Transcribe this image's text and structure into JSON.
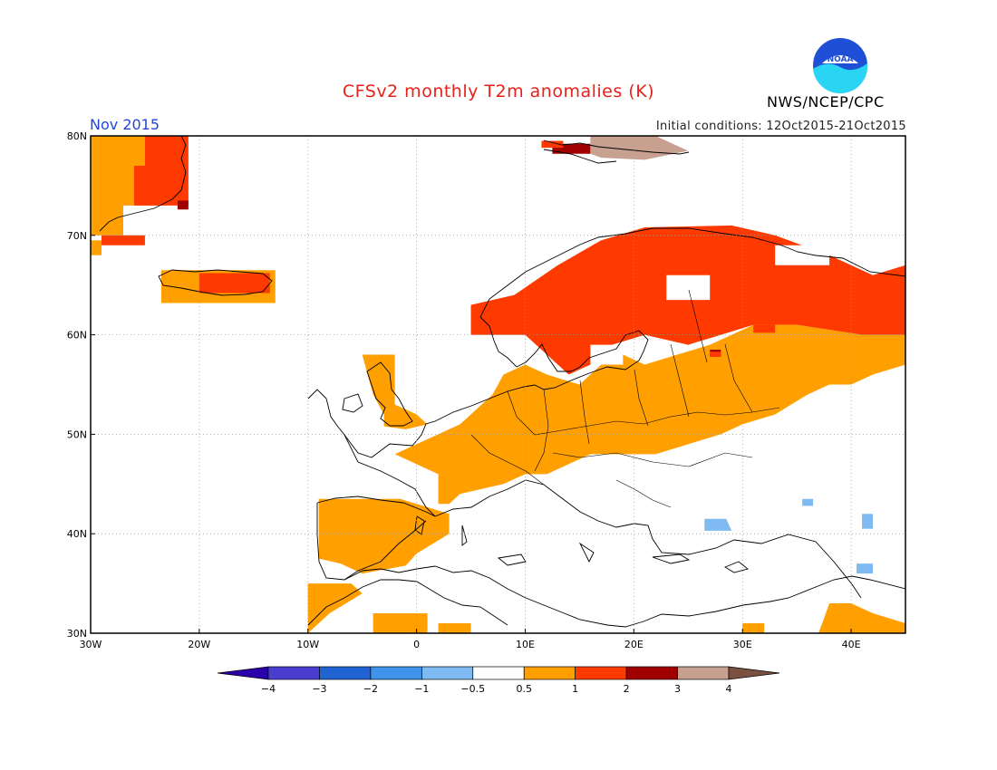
{
  "header": {
    "title": "CFSv2 monthly T2m anomalies (K)",
    "month": "Nov 2015",
    "initial_conditions": "Initial conditions: 12Oct2015-21Oct2015",
    "agency": "NWS/NCEP/CPC",
    "logo_text": "NOAA"
  },
  "map": {
    "lon_range": [
      -30,
      45
    ],
    "lat_range": [
      30,
      80
    ],
    "lon_ticks": [
      {
        "value": -30,
        "label": "30W"
      },
      {
        "value": -20,
        "label": "20W"
      },
      {
        "value": -10,
        "label": "10W"
      },
      {
        "value": 0,
        "label": "0"
      },
      {
        "value": 10,
        "label": "10E"
      },
      {
        "value": 20,
        "label": "20E"
      },
      {
        "value": 30,
        "label": "30E"
      },
      {
        "value": 40,
        "label": "40E"
      }
    ],
    "lat_ticks": [
      {
        "value": 80,
        "label": "80N"
      },
      {
        "value": 70,
        "label": "70N"
      },
      {
        "value": 60,
        "label": "60N"
      },
      {
        "value": 50,
        "label": "50N"
      },
      {
        "value": 40,
        "label": "40N"
      },
      {
        "value": 30,
        "label": "30N"
      }
    ],
    "grid": "dotted",
    "anomaly_regions": [
      {
        "level": 1,
        "color": "#ff9f00",
        "polygon": [
          [
            -30,
            80
          ],
          [
            -25,
            80
          ],
          [
            -25,
            77
          ],
          [
            -23,
            77
          ],
          [
            -23,
            73
          ],
          [
            -27,
            73
          ],
          [
            -27,
            70
          ],
          [
            -30,
            70
          ]
        ]
      },
      {
        "level": 2,
        "color": "#ff3a00",
        "polygon": [
          [
            -25,
            80
          ],
          [
            -21,
            80
          ],
          [
            -21,
            73
          ],
          [
            -26,
            73
          ],
          [
            -26,
            77
          ],
          [
            -25,
            77
          ]
        ]
      },
      {
        "level": 2,
        "color": "#ff3a00",
        "polygon": [
          [
            -29,
            70
          ],
          [
            -25,
            70
          ],
          [
            -25,
            69
          ],
          [
            -29,
            69
          ]
        ]
      },
      {
        "level": 1,
        "color": "#ff9f00",
        "polygon": [
          [
            -30,
            69.5
          ],
          [
            -29,
            69.5
          ],
          [
            -29,
            68
          ],
          [
            -30,
            68
          ]
        ]
      },
      {
        "level": 1,
        "color": "#ff9f00",
        "polygon": [
          [
            -23.5,
            66.5
          ],
          [
            -13,
            66.5
          ],
          [
            -13,
            63.2
          ],
          [
            -23.5,
            63.2
          ]
        ]
      },
      {
        "level": 2,
        "color": "#ff3a00",
        "polygon": [
          [
            -20,
            66.2
          ],
          [
            -13.5,
            66.2
          ],
          [
            -13.5,
            64.2
          ],
          [
            -20,
            64.2
          ]
        ]
      },
      {
        "level": 2,
        "color": "#ff3a00",
        "polygon": [
          [
            5,
            63
          ],
          [
            9,
            64
          ],
          [
            13,
            67
          ],
          [
            17,
            69.5
          ],
          [
            21,
            70.8
          ],
          [
            29,
            71
          ],
          [
            33,
            70
          ],
          [
            38,
            68
          ],
          [
            42,
            66
          ],
          [
            45,
            67
          ],
          [
            45,
            60
          ],
          [
            41,
            60
          ],
          [
            35,
            61
          ],
          [
            31,
            61
          ],
          [
            28,
            60
          ],
          [
            25,
            59
          ],
          [
            21,
            60
          ],
          [
            18,
            59
          ],
          [
            16,
            57
          ],
          [
            14,
            56
          ],
          [
            12,
            58
          ],
          [
            10,
            60
          ],
          [
            7,
            60
          ],
          [
            5,
            60
          ]
        ]
      },
      {
        "level": 1,
        "color": "#ff9f00",
        "polygon": [
          [
            45,
            60
          ],
          [
            45,
            57
          ],
          [
            42,
            56
          ],
          [
            40,
            55
          ],
          [
            38,
            55
          ],
          [
            36,
            54
          ],
          [
            33,
            52
          ],
          [
            30,
            51
          ],
          [
            28,
            50
          ],
          [
            25,
            49
          ],
          [
            22,
            48
          ],
          [
            19,
            48
          ],
          [
            16,
            48
          ],
          [
            14,
            47
          ],
          [
            12,
            46
          ],
          [
            10,
            46
          ],
          [
            8,
            45
          ],
          [
            6,
            44.5
          ],
          [
            4,
            44
          ],
          [
            3,
            43
          ],
          [
            2,
            43
          ],
          [
            2,
            46
          ],
          [
            0,
            47
          ],
          [
            -2,
            48
          ],
          [
            0,
            49
          ],
          [
            2,
            50
          ],
          [
            4,
            51
          ],
          [
            6,
            53
          ],
          [
            7,
            54
          ],
          [
            8,
            56
          ],
          [
            10,
            57
          ],
          [
            12,
            56
          ],
          [
            15,
            55
          ],
          [
            17,
            57
          ],
          [
            19,
            58
          ],
          [
            21,
            57
          ],
          [
            24,
            58
          ],
          [
            27,
            59
          ],
          [
            31,
            61
          ],
          [
            35,
            61
          ],
          [
            41,
            60
          ]
        ]
      },
      {
        "level": 1,
        "color": "#ff9f00",
        "polygon": [
          [
            -9,
            43.5
          ],
          [
            -1.5,
            43.5
          ],
          [
            3,
            42
          ],
          [
            3,
            40
          ],
          [
            0,
            38
          ],
          [
            -1,
            36.8
          ],
          [
            -5,
            36
          ],
          [
            -7,
            37
          ],
          [
            -9,
            37.5
          ]
        ]
      },
      {
        "level": 1,
        "color": "#ff9f00",
        "polygon": [
          [
            -5,
            58
          ],
          [
            -2,
            58
          ],
          [
            -2,
            53
          ],
          [
            0,
            52
          ],
          [
            1,
            51
          ],
          [
            -1,
            50.5
          ],
          [
            -3,
            50.8
          ],
          [
            -3,
            52
          ],
          [
            -4,
            54
          ]
        ]
      },
      {
        "level": 1,
        "color": "#ff9f00",
        "polygon": [
          [
            -10,
            35
          ],
          [
            -6,
            35
          ],
          [
            -5,
            34
          ],
          [
            -8,
            32
          ],
          [
            -10,
            30
          ],
          [
            -10,
            30
          ]
        ]
      },
      {
        "level": 1,
        "color": "#ff9f00",
        "polygon": [
          [
            -4,
            32
          ],
          [
            1,
            32
          ],
          [
            1,
            30
          ],
          [
            -4,
            30
          ]
        ]
      },
      {
        "level": 1,
        "color": "#ff9f00",
        "polygon": [
          [
            2,
            31
          ],
          [
            5,
            31
          ],
          [
            5,
            30
          ],
          [
            2,
            30
          ]
        ]
      },
      {
        "level": 1,
        "color": "#ff9f00",
        "polygon": [
          [
            38,
            33
          ],
          [
            40,
            33
          ],
          [
            42,
            32
          ],
          [
            45,
            31
          ],
          [
            45,
            30
          ],
          [
            37,
            30
          ]
        ]
      },
      {
        "level": 1,
        "color": "#ff9f00",
        "polygon": [
          [
            30,
            31
          ],
          [
            32,
            31
          ],
          [
            32,
            30
          ],
          [
            30,
            30
          ]
        ]
      },
      {
        "level": -1,
        "color": "#7fbbf2",
        "polygon": [
          [
            26.5,
            41.5
          ],
          [
            28.5,
            41.5
          ],
          [
            29,
            40.3
          ],
          [
            26.5,
            40.3
          ]
        ]
      },
      {
        "level": -1,
        "color": "#7fbbf2",
        "polygon": [
          [
            41,
            42
          ],
          [
            42,
            42
          ],
          [
            42,
            40.5
          ],
          [
            41,
            40.5
          ]
        ]
      },
      {
        "level": -1,
        "color": "#7fbbf2",
        "polygon": [
          [
            35.5,
            43.5
          ],
          [
            36.5,
            43.5
          ],
          [
            36.5,
            42.8
          ],
          [
            35.5,
            42.8
          ]
        ]
      },
      {
        "level": -1,
        "color": "#7fbbf2",
        "polygon": [
          [
            40.5,
            37
          ],
          [
            42,
            37
          ],
          [
            42,
            36
          ],
          [
            40.5,
            36
          ]
        ]
      },
      {
        "level": 3,
        "color": "#a00000",
        "polygon": [
          [
            27,
            58.5
          ],
          [
            28,
            58.5
          ],
          [
            28,
            57.8
          ],
          [
            27,
            57.8
          ]
        ]
      },
      {
        "level": 3,
        "color": "#a00000",
        "polygon": [
          [
            -22,
            73.5
          ],
          [
            -21,
            73.5
          ],
          [
            -21,
            72.6
          ],
          [
            -22,
            72.6
          ]
        ]
      },
      {
        "level": 3,
        "color": "#a00000",
        "polygon": [
          [
            12.5,
            79.2
          ],
          [
            16,
            79.2
          ],
          [
            16,
            78.2
          ],
          [
            12.5,
            78.2
          ]
        ]
      },
      {
        "level": 2,
        "color": "#ff3a00",
        "polygon": [
          [
            31,
            61
          ],
          [
            33,
            61
          ],
          [
            33,
            60.2
          ],
          [
            31,
            60.2
          ]
        ]
      },
      {
        "level": 2,
        "color": "#ff3a00",
        "polygon": [
          [
            27,
            58.3
          ],
          [
            28,
            58.3
          ],
          [
            28,
            57.8
          ],
          [
            27,
            57.8
          ]
        ]
      },
      {
        "level": 4,
        "color": "#c7a090",
        "polygon": [
          [
            16,
            80
          ],
          [
            22,
            80
          ],
          [
            25,
            78.5
          ],
          [
            21,
            77.6
          ],
          [
            17,
            77.8
          ],
          [
            16,
            78.2
          ]
        ]
      },
      {
        "level": 2,
        "color": "#ff3a00",
        "polygon": [
          [
            11.5,
            79.5
          ],
          [
            13.5,
            79.5
          ],
          [
            13.5,
            78.8
          ],
          [
            11.5,
            78.8
          ]
        ]
      }
    ],
    "white_holes": [
      [
        [
          23,
          66
        ],
        [
          27,
          66
        ],
        [
          27,
          63.5
        ],
        [
          23,
          63.5
        ]
      ],
      [
        [
          33,
          69
        ],
        [
          38,
          69
        ],
        [
          38,
          67
        ],
        [
          33,
          67
        ]
      ],
      [
        [
          16,
          59
        ],
        [
          19,
          59
        ],
        [
          19,
          57
        ],
        [
          16,
          57
        ]
      ]
    ]
  },
  "colorbar": {
    "bins": [
      {
        "color": "#2a00a8"
      },
      {
        "color": "#4a3ed0"
      },
      {
        "color": "#1f64d2"
      },
      {
        "color": "#3f93ea"
      },
      {
        "color": "#7fbbf2"
      },
      {
        "color": "#ffffff"
      },
      {
        "color": "#ff9f00"
      },
      {
        "color": "#ff3a00"
      },
      {
        "color": "#a00000"
      },
      {
        "color": "#c7a090"
      },
      {
        "color": "#7a5040"
      }
    ],
    "labels": [
      "-4",
      "-3",
      "-2",
      "-1",
      "-0.5",
      "0.5",
      "1",
      "2",
      "3",
      "4"
    ]
  }
}
